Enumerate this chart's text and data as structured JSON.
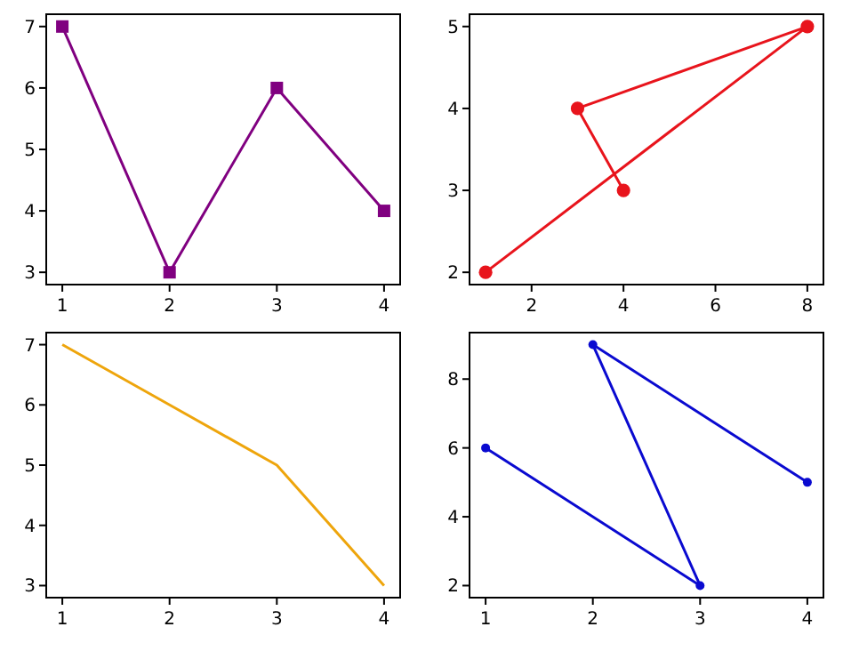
{
  "chart_data": [
    {
      "type": "line",
      "x": [
        1,
        2,
        3,
        4
      ],
      "series": [
        {
          "color": "#800080",
          "values": [
            7,
            3,
            6,
            4
          ]
        }
      ],
      "marker": "square",
      "xlim": [
        0.85,
        4.15
      ],
      "xticks": [
        1,
        2,
        3,
        4
      ],
      "ylim": [
        2.8,
        7.2
      ],
      "yticks": [
        3,
        4,
        5,
        6,
        7
      ]
    },
    {
      "type": "line",
      "x": [
        1,
        8,
        3,
        4
      ],
      "series": [
        {
          "color": "#e8141c",
          "values": [
            2,
            5,
            4,
            3
          ]
        }
      ],
      "marker": "circle",
      "xlim": [
        0.65,
        8.35
      ],
      "xticks": [
        2,
        4,
        6,
        8
      ],
      "ylim": [
        1.85,
        5.15
      ],
      "yticks": [
        2,
        3,
        4,
        5
      ]
    },
    {
      "type": "line",
      "x": [
        1,
        2,
        3,
        4
      ],
      "series": [
        {
          "color": "#eea50c",
          "values": [
            7,
            6,
            5,
            3
          ]
        }
      ],
      "xlim": [
        0.85,
        4.15
      ],
      "xticks": [
        1,
        2,
        3,
        4
      ],
      "ylim": [
        2.8,
        7.2
      ],
      "yticks": [
        3,
        4,
        5,
        6,
        7
      ]
    },
    {
      "type": "line",
      "x": [
        1,
        3,
        2,
        4
      ],
      "series": [
        {
          "color": "#0a0ad0",
          "values": [
            6,
            2,
            9,
            5
          ]
        }
      ],
      "marker": "circle",
      "xlim": [
        0.85,
        4.15
      ],
      "xticks": [
        1,
        2,
        3,
        4
      ],
      "ylim": [
        1.65,
        9.35
      ],
      "yticks": [
        2,
        4,
        6,
        8
      ]
    }
  ]
}
